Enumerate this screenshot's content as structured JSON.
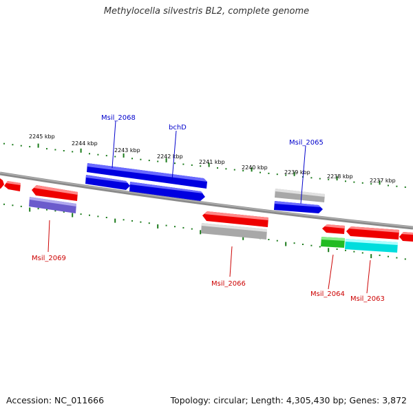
{
  "title": "Methylocella silvestris BL2, complete genome",
  "footer": {
    "accession": "Accession: NC_011666",
    "summary": "Topology: circular; Length: 4,305,430 bp; Genes: 3,872"
  },
  "colors": {
    "backbone": "#808080",
    "tick": "#1a7a1a",
    "forward_label": "#0000cc",
    "reverse_label": "#cc0000",
    "tick_label": "#000000"
  },
  "scale_labels": [
    "2245 kbp",
    "2244 kbp",
    "2243 kbp",
    "2242 kbp",
    "2241 kbp",
    "2240 kbp",
    "2239 kbp",
    "2238 kbp",
    "2237 kbp"
  ],
  "gene_labels": {
    "msil_2068": "Msil_2068",
    "bchd": "bchD",
    "msil_2065": "Msil_2065",
    "msil_2069": "Msil_2069",
    "msil_2066": "Msil_2066",
    "msil_2064": "Msil_2064",
    "msil_2063": "Msil_2063"
  }
}
